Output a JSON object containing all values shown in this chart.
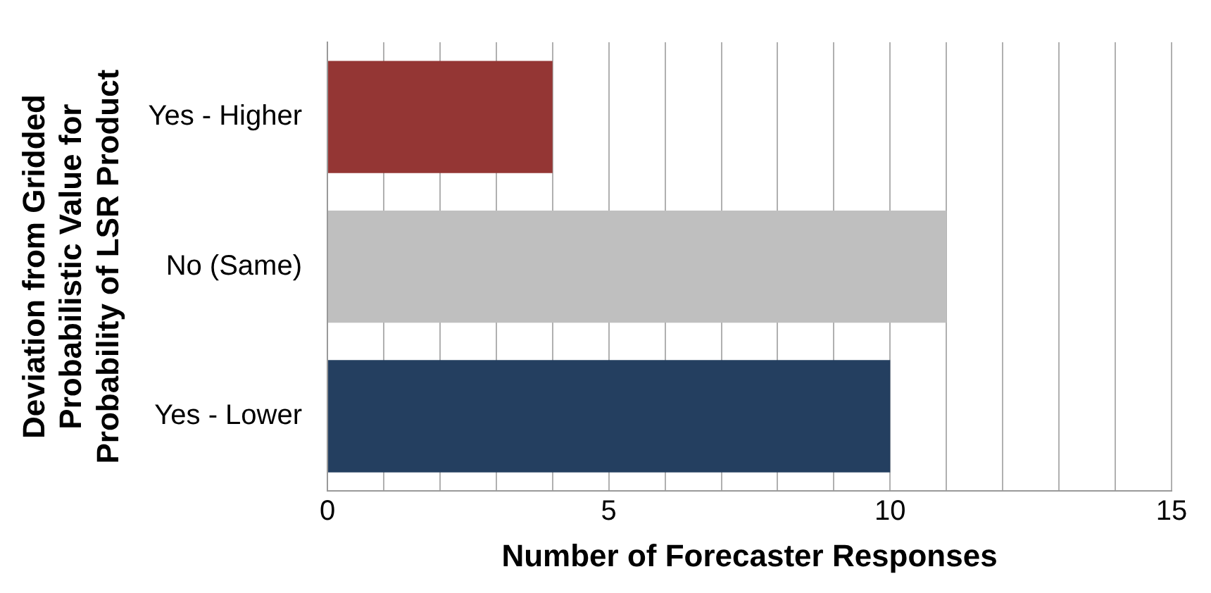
{
  "chart_data": {
    "type": "bar",
    "orientation": "horizontal",
    "xlabel": "Number of Forecaster Responses",
    "ylabel": "Deviation from Gridded\nProbabilistic Value for\nProbability of LSR Product",
    "categories": [
      "Yes - Higher",
      "No (Same)",
      "Yes - Lower"
    ],
    "values": [
      4,
      11,
      10
    ],
    "colors": [
      "#943634",
      "#bfbfbf",
      "#243f60"
    ],
    "xlim": [
      0,
      15
    ],
    "xticks": [
      0,
      {
        "value": 1,
        "label": null
      },
      {
        "value": 2,
        "label": null
      },
      {
        "value": 3,
        "label": null
      },
      {
        "value": 4,
        "label": null
      },
      5,
      {
        "value": 6,
        "label": null
      },
      {
        "value": 7,
        "label": null
      },
      {
        "value": 8,
        "label": null
      },
      {
        "value": 9,
        "label": null
      },
      10,
      {
        "value": 11,
        "label": null
      },
      {
        "value": 12,
        "label": null
      },
      {
        "value": 13,
        "label": null
      },
      {
        "value": 14,
        "label": null
      },
      15
    ],
    "grid": "x",
    "legend": false
  }
}
